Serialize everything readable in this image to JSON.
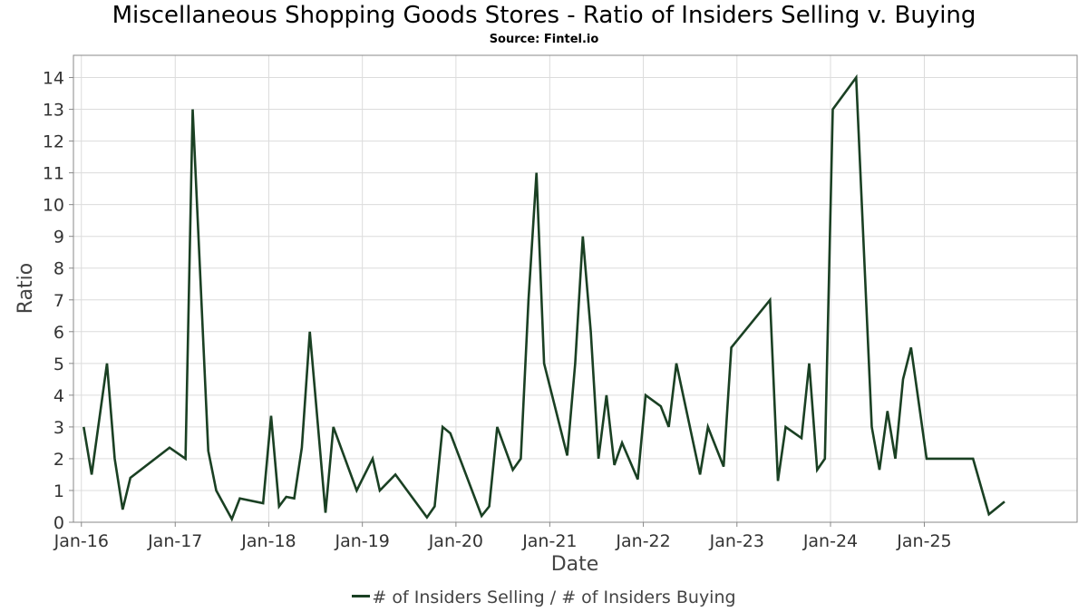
{
  "chart_data": {
    "type": "line",
    "title": "Miscellaneous Shopping Goods Stores - Ratio of Insiders Selling v. Buying",
    "subtitle": "Source: Fintel.io",
    "xlabel": "Date",
    "ylabel": "Ratio",
    "xlim": [
      "2015-12-01",
      "2026-08-20"
    ],
    "ylim": [
      0,
      14.7
    ],
    "x_ticks": [
      "2016-01-01",
      "2017-01-01",
      "2018-01-01",
      "2019-01-01",
      "2020-01-01",
      "2021-01-01",
      "2022-01-01",
      "2023-01-01",
      "2024-01-01",
      "2025-01-01"
    ],
    "x_tick_labels": [
      "Jan-16",
      "Jan-17",
      "Jan-18",
      "Jan-19",
      "Jan-20",
      "Jan-21",
      "Jan-22",
      "Jan-23",
      "Jan-24",
      "Jan-25"
    ],
    "y_ticks": [
      0,
      1,
      2,
      3,
      4,
      5,
      6,
      7,
      8,
      9,
      10,
      11,
      12,
      13,
      14
    ],
    "grid": true,
    "legend_position": "bottom",
    "line_color": "#1a4023",
    "series": [
      {
        "name": "# of Insiders Selling / # of Insiders Buying",
        "x": [
          "2016-01-10",
          "2016-02-10",
          "2016-04-10",
          "2016-05-10",
          "2016-06-10",
          "2016-07-10",
          "2016-12-10",
          "2017-02-10",
          "2017-03-10",
          "2017-05-10",
          "2017-06-10",
          "2017-08-10",
          "2017-09-10",
          "2017-12-10",
          "2018-01-10",
          "2018-02-10",
          "2018-03-10",
          "2018-04-10",
          "2018-05-10",
          "2018-06-10",
          "2018-08-10",
          "2018-09-10",
          "2018-12-10",
          "2019-02-10",
          "2019-03-10",
          "2019-05-10",
          "2019-09-10",
          "2019-10-10",
          "2019-11-10",
          "2019-12-10",
          "2020-04-10",
          "2020-05-10",
          "2020-06-10",
          "2020-08-10",
          "2020-09-10",
          "2020-10-10",
          "2020-11-10",
          "2020-12-10",
          "2021-03-10",
          "2021-04-10",
          "2021-05-10",
          "2021-06-10",
          "2021-07-10",
          "2021-08-10",
          "2021-09-10",
          "2021-10-10",
          "2021-12-10",
          "2022-01-10",
          "2022-03-10",
          "2022-04-10",
          "2022-05-10",
          "2022-08-10",
          "2022-09-10",
          "2022-11-10",
          "2022-12-10",
          "2023-05-10",
          "2023-06-10",
          "2023-07-10",
          "2023-09-10",
          "2023-10-10",
          "2023-11-10",
          "2023-12-10",
          "2024-01-10",
          "2024-04-10",
          "2024-06-10",
          "2024-07-10",
          "2024-08-10",
          "2024-09-10",
          "2024-10-10",
          "2024-11-10",
          "2025-01-10",
          "2025-07-10",
          "2025-09-10",
          "2025-11-10"
        ],
        "values": [
          3,
          1.5,
          5,
          2,
          0.4,
          1.4,
          2.35,
          2,
          13,
          2.25,
          1,
          0.1,
          0.75,
          0.6,
          3.35,
          0.5,
          0.8,
          0.75,
          2.35,
          6,
          0.3,
          3,
          1,
          2,
          1,
          1.5,
          0.15,
          0.5,
          3,
          2.8,
          0.2,
          0.5,
          3,
          1.65,
          2,
          7,
          11,
          5,
          2.1,
          5,
          9,
          6,
          2,
          4,
          1.8,
          2.5,
          1.35,
          4,
          3.65,
          3,
          5,
          1.5,
          3,
          1.75,
          5.5,
          7,
          1.3,
          3,
          2.65,
          5,
          1.65,
          2,
          13,
          14,
          3,
          1.65,
          3.5,
          2,
          4.5,
          5.5,
          2,
          2,
          0.25,
          0.65
        ]
      }
    ]
  }
}
